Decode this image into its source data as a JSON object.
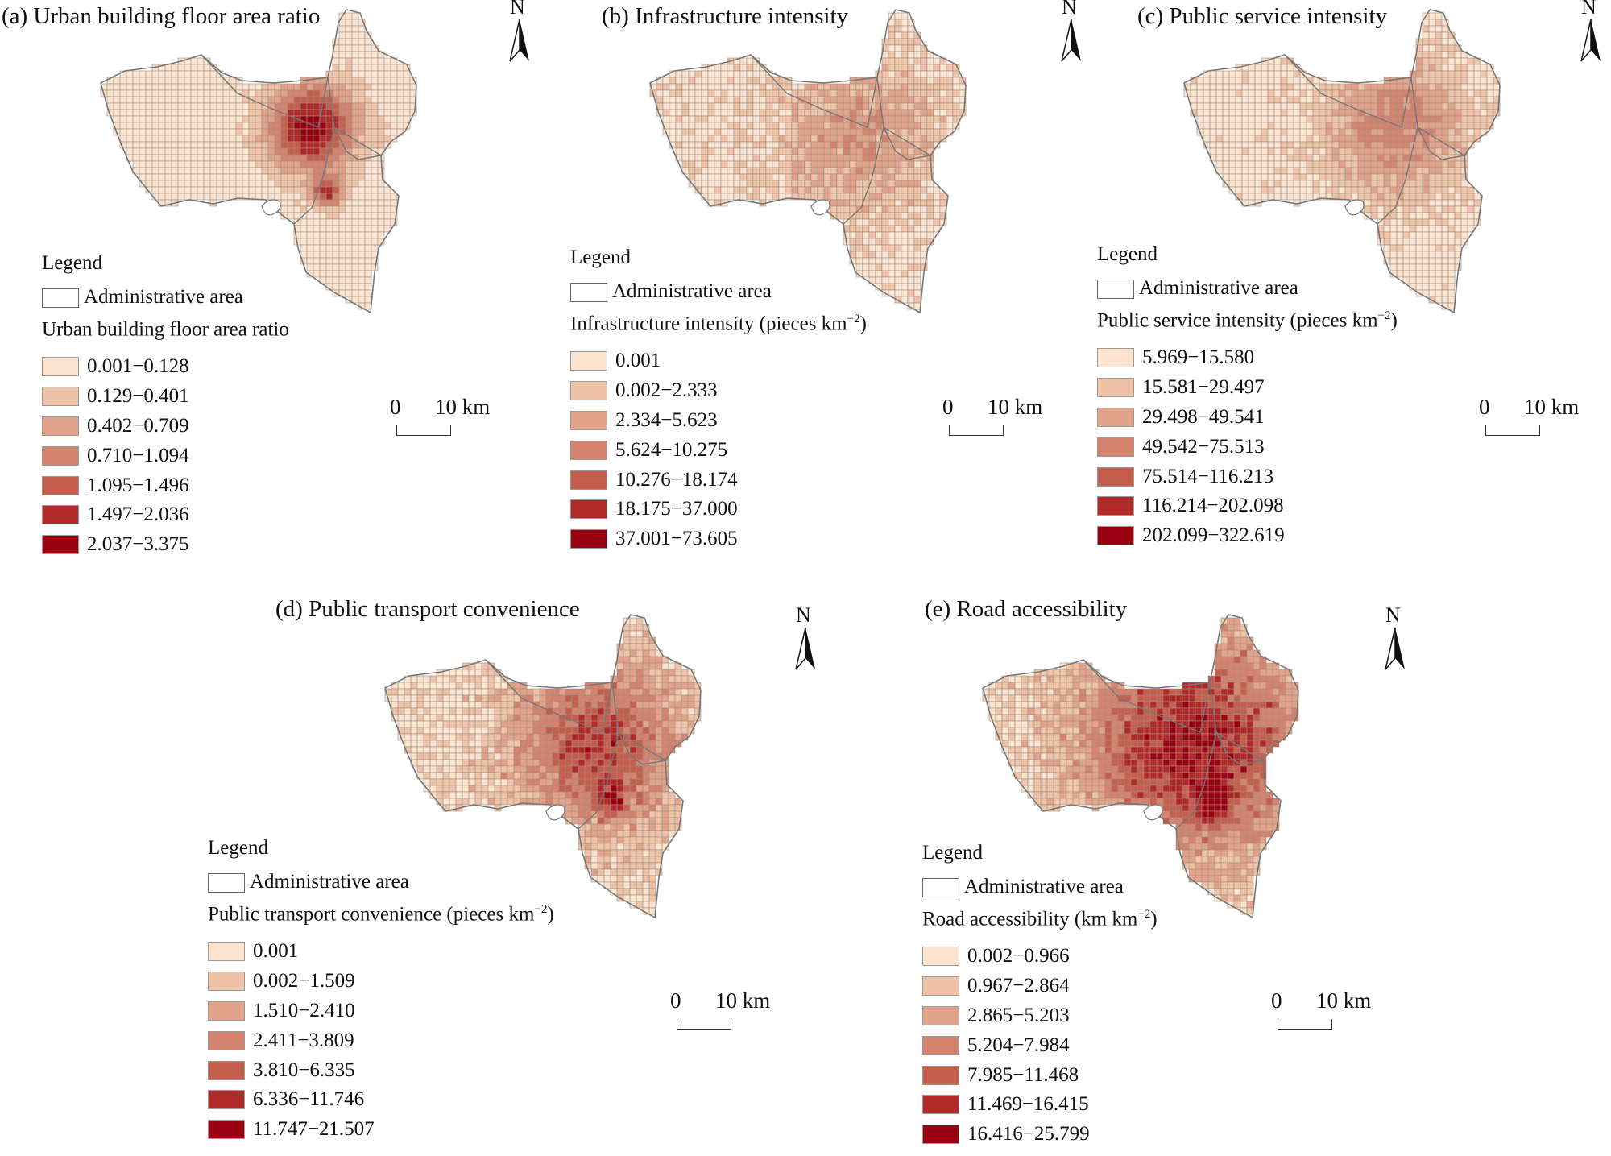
{
  "legend_heading": "Legend",
  "admin_label": "Administrative area",
  "north_label": "N",
  "scale_zero": "0",
  "scale_ten": "10 km",
  "colors": [
    "#fbe3cf",
    "#efc3a7",
    "#e2a38a",
    "#d4836e",
    "#c65e4d",
    "#b2292a",
    "#9a0010"
  ],
  "panels": [
    {
      "title": "(a) Urban building floor area ratio",
      "legend_title": "Urban building floor area ratio",
      "unit_sup": "",
      "unit_end": "",
      "classes": [
        "0.001−0.128",
        "0.129−0.401",
        "0.402−0.709",
        "0.710−1.094",
        "1.095−1.496",
        "1.497−2.036",
        "2.037−3.375"
      ]
    },
    {
      "title": "(b) Infrastructure intensity",
      "legend_title": "Infrastructure intensity (pieces km",
      "unit_sup": "−2",
      "unit_end": ")",
      "classes": [
        "0.001",
        "0.002−2.333",
        "2.334−5.623",
        "5.624−10.275",
        "10.276−18.174",
        "18.175−37.000",
        "37.001−73.605"
      ]
    },
    {
      "title": "(c) Public service intensity",
      "legend_title": "Public service intensity (pieces km",
      "unit_sup": "−2",
      "unit_end": ")",
      "classes": [
        "5.969−15.580",
        "15.581−29.497",
        "29.498−49.541",
        "49.542−75.513",
        "75.514−116.213",
        "116.214−202.098",
        "202.099−322.619"
      ]
    },
    {
      "title": "(d) Public transport  convenience",
      "legend_title": "Public transport  convenience (pieces km",
      "unit_sup": "−2",
      "unit_end": ")",
      "classes": [
        "0.001",
        "0.002−1.509",
        "1.510−2.410",
        "2.411−3.809",
        "3.810−6.335",
        "6.336−11.746",
        "11.747−21.507"
      ]
    },
    {
      "title": "(e) Road accessibility",
      "legend_title": "Road accessibility (km km",
      "unit_sup": "−2",
      "unit_end": ")",
      "classes": [
        "0.002−0.966",
        "0.967−2.864",
        "2.865−5.203",
        "5.204−7.984",
        "7.985−11.468",
        "11.469−16.415",
        "16.416−25.799"
      ]
    }
  ]
}
